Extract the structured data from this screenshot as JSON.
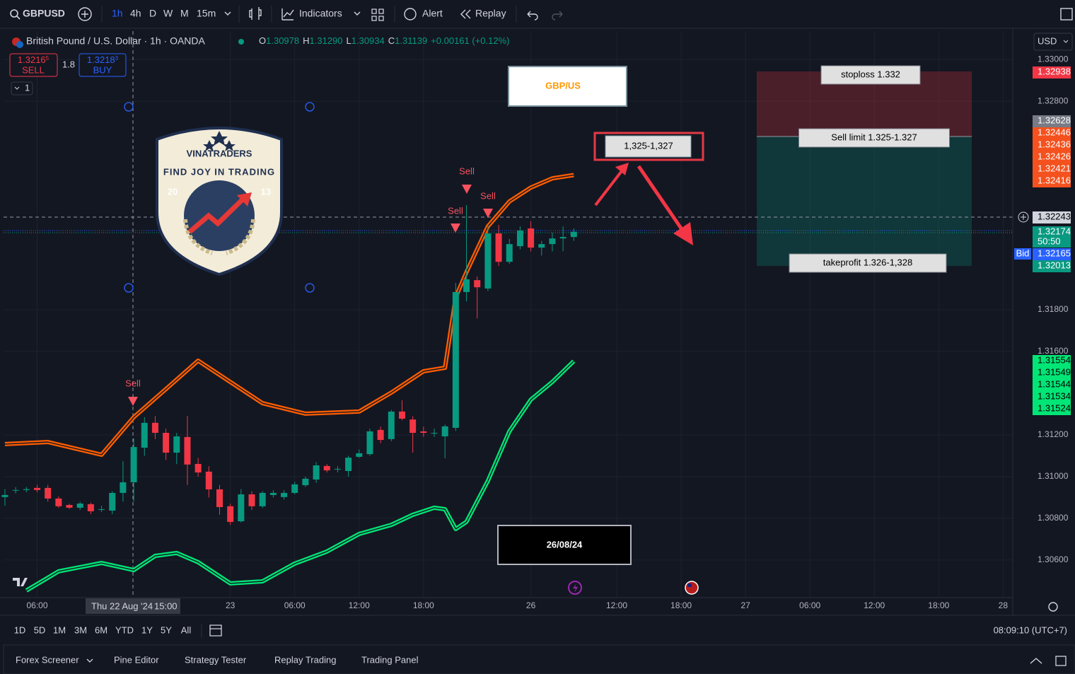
{
  "toolbar": {
    "symbol": "GBPUSD",
    "intervals": [
      "1h",
      "4h",
      "D",
      "W",
      "M",
      "15m"
    ],
    "indicators": "Indicators",
    "alert": "Alert",
    "replay": "Replay"
  },
  "legend": {
    "title": "British Pound / U.S. Dollar · 1h · OANDA",
    "ohlc": [
      {
        "k": "O",
        "v": "1.30978"
      },
      {
        "k": "H",
        "v": "1.31290"
      },
      {
        "k": "L",
        "v": "1.30934"
      },
      {
        "k": "C",
        "v": "1.31139"
      }
    ],
    "change": "+0.00161 (+0.12%)"
  },
  "trade": {
    "sell_price": "1.3216",
    "sell_pip": "5",
    "sell": "SELL",
    "spread": "1.8",
    "buy_price": "1.3218",
    "buy_pip": "3",
    "buy": "BUY",
    "qty": "1"
  },
  "currency": "USD",
  "chart_data": {
    "type": "candlestick",
    "open": [
      1.30902,
      1.30936,
      1.30936,
      1.30946,
      1.30946,
      1.30895,
      1.30864,
      1.30851,
      1.30868,
      1.30844,
      1.30837,
      1.30922,
      1.30973,
      1.31139,
      1.31258,
      1.3121,
      1.31115,
      1.3119,
      1.31061,
      1.31024,
      1.30939,
      1.30858,
      1.30786,
      1.30915,
      1.30858,
      1.30912,
      1.30902,
      1.30922,
      1.30959,
      1.30986,
      1.31051,
      1.31037,
      1.31027,
      1.31095,
      1.31108,
      1.31224,
      1.3118,
      1.31312,
      1.31274,
      1.31217,
      1.3121,
      1.31193,
      1.31234,
      1.31885,
      1.31942,
      1.31902,
      1.32166,
      1.3203,
      1.32105,
      1.3219,
      1.32098,
      1.32115,
      1.32142,
      1.32149
    ],
    "high": [
      1.3094,
      1.3095,
      1.3095,
      1.3096,
      1.3096,
      1.30905,
      1.3087,
      1.3088,
      1.30875,
      1.3086,
      1.3093,
      1.31074,
      1.31183,
      1.31285,
      1.3129,
      1.3123,
      1.3121,
      1.31291,
      1.3109,
      1.3105,
      1.3096,
      1.3087,
      1.3094,
      1.3093,
      1.3093,
      1.30935,
      1.30935,
      1.30975,
      1.31,
      1.3107,
      1.3106,
      1.3105,
      1.311,
      1.3113,
      1.3123,
      1.3124,
      1.3132,
      1.31366,
      1.3129,
      1.3124,
      1.3123,
      1.3125,
      1.31929,
      1.32302,
      1.3196,
      1.32207,
      1.32207,
      1.3214,
      1.322,
      1.32224,
      1.3213,
      1.3217,
      1.322,
      1.3219
    ],
    "low": [
      1.3086,
      1.3092,
      1.30925,
      1.30925,
      1.3088,
      1.3085,
      1.30845,
      1.3084,
      1.3082,
      1.3083,
      1.3082,
      1.3088,
      1.3088,
      1.311,
      1.3118,
      1.3108,
      1.3106,
      1.3096,
      1.31,
      1.309,
      1.30817,
      1.30769,
      1.3078,
      1.3084,
      1.3085,
      1.309,
      1.3089,
      1.30915,
      1.3095,
      1.3097,
      1.3102,
      1.3102,
      1.31,
      1.3109,
      1.311,
      1.3116,
      1.3117,
      1.3127,
      1.31115,
      1.3119,
      1.3119,
      1.31088,
      1.3122,
      1.3184,
      1.31759,
      1.3189,
      1.3201,
      1.3202,
      1.3209,
      1.3208,
      1.3206,
      1.3208,
      1.32081,
      1.3213
    ],
    "close": [
      1.30912,
      1.30936,
      1.3094,
      1.30936,
      1.30895,
      1.30858,
      1.30851,
      1.30871,
      1.30834,
      1.30844,
      1.30922,
      1.30973,
      1.31142,
      1.31258,
      1.3121,
      1.31115,
      1.31193,
      1.31058,
      1.3102,
      1.30939,
      1.30854,
      1.30783,
      1.30915,
      1.30858,
      1.30922,
      1.30922,
      1.30922,
      1.30963,
      1.3099,
      1.31054,
      1.3103,
      1.31037,
      1.31091,
      1.31112,
      1.31217,
      1.31176,
      1.31312,
      1.31278,
      1.3121,
      1.3121,
      1.3121,
      1.31241,
      1.31885,
      1.31946,
      1.31908,
      1.32166,
      1.3203,
      1.32115,
      1.3218,
      1.32098,
      1.32115,
      1.32142,
      1.32149,
      1.32174
    ],
    "up_color": "#089981",
    "down_color": "#f23645",
    "ylim": [
      1.3042,
      1.33136
    ],
    "yticks": [
      {
        "value": 1.33,
        "label": "1.33000"
      },
      {
        "value": 1.328,
        "label": "1.32800"
      },
      {
        "value": 1.318,
        "label": "1.31800"
      },
      {
        "value": 1.316,
        "label": "1.31600"
      },
      {
        "value": 1.312,
        "label": "1.31200"
      },
      {
        "value": 1.31,
        "label": "1.31000"
      },
      {
        "value": 1.308,
        "label": "1.30800"
      },
      {
        "value": 1.306,
        "label": "1.30600"
      }
    ],
    "xlim": [
      -0.13,
      93.9
    ],
    "xticks": [
      {
        "value": 3,
        "label": "06:00"
      },
      {
        "value": 21,
        "label": "23"
      },
      {
        "value": 27,
        "label": "06:00"
      },
      {
        "value": 33,
        "label": "12:00"
      },
      {
        "value": 39,
        "label": "18:00"
      },
      {
        "value": 49,
        "label": "26"
      },
      {
        "value": 57,
        "label": "12:00"
      },
      {
        "value": 63,
        "label": "18:00"
      },
      {
        "value": 69,
        "label": "27"
      },
      {
        "value": 75,
        "label": "06:00"
      },
      {
        "value": 81,
        "label": "12:00"
      },
      {
        "value": 87,
        "label": "18:00"
      },
      {
        "value": 93,
        "label": "28"
      }
    ],
    "grid": true,
    "bands": [
      {
        "color": "#ff5d00",
        "x": [
          0,
          4,
          9,
          12,
          15,
          18,
          21,
          24,
          28,
          33,
          36,
          39,
          41,
          42,
          43,
          45,
          47,
          49,
          51,
          53
        ],
        "values": [
          1.31156,
          1.31166,
          1.31105,
          1.31285,
          1.3142,
          1.31556,
          1.31454,
          1.31352,
          1.31302,
          1.31312,
          1.31403,
          1.31505,
          1.31522,
          1.31861,
          1.3198,
          1.322,
          1.32319,
          1.32386,
          1.3243,
          1.32446
        ]
      },
      {
        "color": "#00e676",
        "x": [
          2,
          5,
          9,
          12,
          14,
          16,
          18,
          21,
          24,
          27,
          30,
          33,
          36,
          38,
          40,
          41,
          42,
          43,
          45,
          47,
          49,
          51,
          53
        ],
        "values": [
          1.30454,
          1.30546,
          1.30586,
          1.30552,
          1.3062,
          1.30634,
          1.3059,
          1.30488,
          1.30498,
          1.30583,
          1.30641,
          1.30725,
          1.30769,
          1.30817,
          1.30851,
          1.30844,
          1.30749,
          1.30783,
          1.3098,
          1.31217,
          1.31369,
          1.31454,
          1.31554
        ]
      }
    ],
    "signals": [
      "Sell",
      "Sell",
      "Sell",
      "Sell"
    ]
  },
  "price_tags": [
    {
      "text": "1.32938",
      "color": "#f23645"
    },
    {
      "text": "1.32628",
      "color": "#787b86"
    },
    {
      "text": "1.32446",
      "color": "#f4511e"
    },
    {
      "text": "1.32436",
      "color": "#f4511e"
    },
    {
      "text": "1.32426",
      "color": "#f4511e"
    },
    {
      "text": "1.32421",
      "color": "#f4511e"
    },
    {
      "text": "1.32416",
      "color": "#f4511e"
    },
    {
      "text": "1.32243",
      "color": "#d1d4dc"
    },
    {
      "text": "1.32174",
      "color": "#089981"
    },
    {
      "text": "1.32165",
      "color": "#2962ff"
    },
    {
      "text": "1.32013",
      "color": "#089981"
    },
    {
      "text": "1.31554",
      "color": "#00e676"
    },
    {
      "text": "1.31549",
      "color": "#00e676"
    },
    {
      "text": "1.31544",
      "color": "#00e676"
    },
    {
      "text": "1.31534",
      "color": "#00e676"
    },
    {
      "text": "1.31524",
      "color": "#00e676"
    }
  ],
  "bid": "Bid",
  "countdown": "50:50",
  "crosshair": {
    "date": "Thu 22 Aug '24",
    "time": "15:00"
  },
  "annotations": {
    "pair": "GBP/US",
    "zone": "1,325-1,327",
    "date": "26/08/24",
    "stoploss": "stoploss 1.332",
    "sell_limit": "Sell limit 1.325-1.327",
    "takeprofit": "takeprofit 1.326-1,328"
  },
  "logo": {
    "name": "VINATRADERS",
    "tagline": "FIND JOY IN TRADING",
    "year_left": "20",
    "year_right": "13"
  },
  "ranges": [
    "1D",
    "5D",
    "1M",
    "3M",
    "6M",
    "YTD",
    "1Y",
    "5Y",
    "All"
  ],
  "clock": "08:09:10 (UTC+7)",
  "tabs": [
    "Forex Screener",
    "Pine Editor",
    "Strategy Tester",
    "Replay Trading",
    "Trading Panel"
  ]
}
